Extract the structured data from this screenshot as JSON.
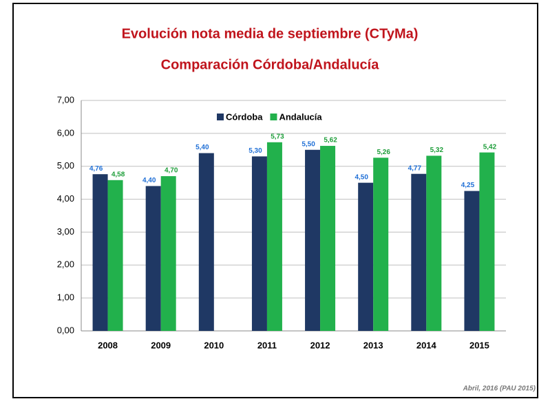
{
  "chart_data": {
    "type": "bar",
    "title": "Evolución nota media de septiembre (CTyMa)",
    "subtitle": "Comparación Córdoba/Andalucía",
    "categories": [
      "2008",
      "2009",
      "2010",
      "2011",
      "2012",
      "2013",
      "2014",
      "2015"
    ],
    "series": [
      {
        "name": "Córdoba",
        "color": "#1f3864",
        "label_color": "#1f6fd6",
        "values": [
          4.76,
          4.4,
          5.4,
          5.3,
          5.5,
          4.5,
          4.77,
          4.25
        ],
        "value_labels": [
          "4,76",
          "4,40",
          "5,40",
          "5,30",
          "5,50",
          "4,50",
          "4,77",
          "4,25"
        ]
      },
      {
        "name": "Andalucía",
        "color": "#22b14c",
        "label_color": "#1e9e3a",
        "values": [
          4.58,
          4.7,
          null,
          5.73,
          5.62,
          5.26,
          5.32,
          5.42
        ],
        "value_labels": [
          "4,58",
          "4,70",
          null,
          "5,73",
          "5,62",
          "5,26",
          "5,32",
          "5,42"
        ]
      }
    ],
    "ylim": [
      0,
      7
    ],
    "yticks": [
      {
        "value": 0,
        "label": "0,00"
      },
      {
        "value": 1,
        "label": "1,00"
      },
      {
        "value": 2,
        "label": "2,00"
      },
      {
        "value": 3,
        "label": "3,00"
      },
      {
        "value": 4,
        "label": "4,00"
      },
      {
        "value": 5,
        "label": "5,00"
      },
      {
        "value": 6,
        "label": "6,00"
      },
      {
        "value": 7,
        "label": "7,00"
      }
    ],
    "grid": true,
    "legend": "top",
    "annotation": "Abril, 2016 (PAU 2015)"
  }
}
